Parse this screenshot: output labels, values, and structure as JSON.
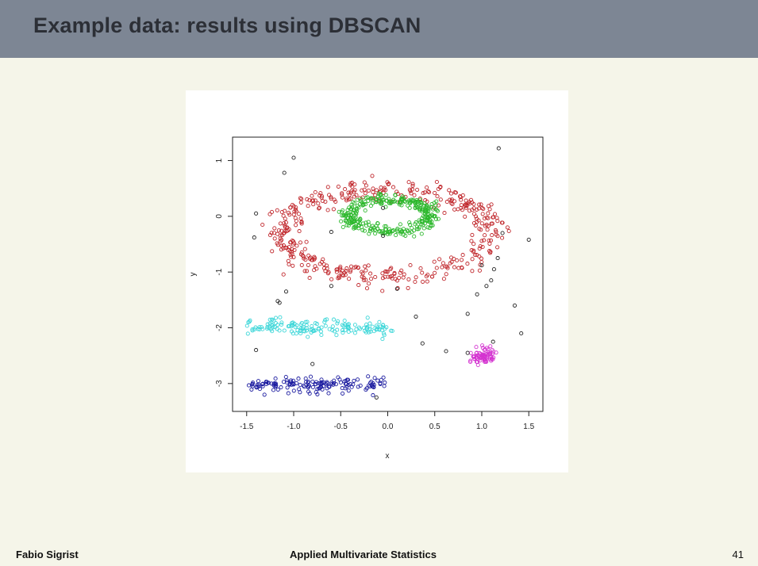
{
  "slide": {
    "title": "Example data: results using DBSCAN",
    "footer_left": "Fabio Sigrist",
    "footer_center": "Applied Multivariate Statistics",
    "page_number": "41"
  },
  "chart_data": {
    "type": "scatter",
    "title": "",
    "xlabel": "x",
    "ylabel": "y",
    "xlim": [
      -1.65,
      1.65
    ],
    "ylim": [
      -3.5,
      1.42
    ],
    "xticks": [
      -1.5,
      -1.0,
      -0.5,
      0.0,
      0.5,
      1.0,
      1.5
    ],
    "xtick_labels": [
      "-1.5",
      "-1.0",
      "-0.5",
      "0.0",
      "0.5",
      "1.0",
      "1.5"
    ],
    "yticks": [
      -3,
      -2,
      -1,
      0,
      1
    ],
    "ytick_labels": [
      "-3",
      "-2",
      "-1",
      "0",
      "1"
    ],
    "grid": false,
    "legend": "none",
    "marker": "open circle",
    "series": [
      {
        "color": "#c0262b",
        "shape": "ring",
        "n_points": 440,
        "center": [
          0.0,
          -0.3
        ],
        "radius": [
          1.12,
          0.78
        ],
        "noise": 0.1
      },
      {
        "color": "#2db82d",
        "shape": "ring",
        "n_points": 320,
        "center": [
          0.03,
          0.02
        ],
        "radius": [
          0.43,
          0.28
        ],
        "noise": 0.05
      },
      {
        "color": "#3bd6d8",
        "shape": "band",
        "n_points": 150,
        "x_range": [
          -1.5,
          0.05
        ],
        "y_center": -2.0,
        "noise": 0.07
      },
      {
        "color": "#1c1ca0",
        "shape": "band",
        "n_points": 150,
        "x_range": [
          -1.5,
          -0.03
        ],
        "y_center": -3.02,
        "noise": 0.07
      },
      {
        "color": "#d433d0",
        "shape": "blob",
        "n_points": 75,
        "center": [
          1.02,
          -2.5
        ],
        "spread": [
          0.07,
          0.07
        ]
      },
      {
        "color": "#222222",
        "shape": "noise",
        "points": [
          [
            -1.4,
            0.05
          ],
          [
            -1.42,
            -0.38
          ],
          [
            -1.1,
            0.78
          ],
          [
            -1.0,
            1.05
          ],
          [
            -0.6,
            -0.28
          ],
          [
            -0.6,
            -1.25
          ],
          [
            -1.17,
            -1.52
          ],
          [
            -1.15,
            -1.55
          ],
          [
            1.18,
            1.22
          ],
          [
            1.13,
            -0.95
          ],
          [
            1.17,
            -0.75
          ],
          [
            1.22,
            -0.3
          ],
          [
            1.5,
            -0.42
          ],
          [
            1.0,
            -0.88
          ],
          [
            1.05,
            -1.25
          ],
          [
            0.95,
            -1.4
          ],
          [
            1.1,
            -1.15
          ],
          [
            1.35,
            -1.6
          ],
          [
            1.42,
            -2.1
          ],
          [
            0.85,
            -1.75
          ],
          [
            0.3,
            -1.8
          ],
          [
            0.37,
            -2.28
          ],
          [
            0.62,
            -2.42
          ],
          [
            1.12,
            -2.25
          ],
          [
            -0.12,
            -3.25
          ],
          [
            -0.8,
            -2.65
          ],
          [
            -1.4,
            -2.4
          ],
          [
            -0.05,
            0.15
          ],
          [
            -0.05,
            -0.35
          ],
          [
            -1.08,
            -1.35
          ],
          [
            0.1,
            -1.3
          ],
          [
            0.85,
            -2.45
          ]
        ]
      }
    ]
  }
}
